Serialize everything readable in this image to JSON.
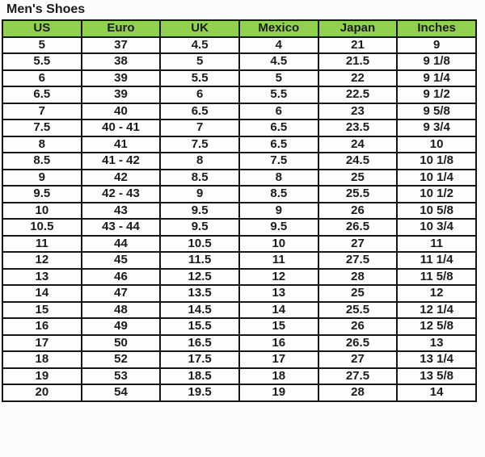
{
  "title": "Men's Shoes",
  "header_bg": "#92d050",
  "border_color": "#161616",
  "chart_data": {
    "type": "table",
    "title": "Men's Shoes",
    "columns": [
      "US",
      "Euro",
      "UK",
      "Mexico",
      "Japan",
      "Inches"
    ],
    "rows": [
      [
        "5",
        "37",
        "4.5",
        "4",
        "21",
        "9"
      ],
      [
        "5.5",
        "38",
        "5",
        "4.5",
        "21.5",
        "9 1/8"
      ],
      [
        "6",
        "39",
        "5.5",
        "5",
        "22",
        "9 1/4"
      ],
      [
        "6.5",
        "39",
        "6",
        "5.5",
        "22.5",
        "9 1/2"
      ],
      [
        "7",
        "40",
        "6.5",
        "6",
        "23",
        "9 5/8"
      ],
      [
        "7.5",
        "40 - 41",
        "7",
        "6.5",
        "23.5",
        "9 3/4"
      ],
      [
        "8",
        "41",
        "7.5",
        "6.5",
        "24",
        "10"
      ],
      [
        "8.5",
        "41 - 42",
        "8",
        "7.5",
        "24.5",
        "10 1/8"
      ],
      [
        "9",
        "42",
        "8.5",
        "8",
        "25",
        "10 1/4"
      ],
      [
        "9.5",
        "42 - 43",
        "9",
        "8.5",
        "25.5",
        "10 1/2"
      ],
      [
        "10",
        "43",
        "9.5",
        "9",
        "26",
        "10 5/8"
      ],
      [
        "10.5",
        "43 - 44",
        "9.5",
        "9.5",
        "26.5",
        "10 3/4"
      ],
      [
        "11",
        "44",
        "10.5",
        "10",
        "27",
        "11"
      ],
      [
        "12",
        "45",
        "11.5",
        "11",
        "27.5",
        "11 1/4"
      ],
      [
        "13",
        "46",
        "12.5",
        "12",
        "28",
        "11 5/8"
      ],
      [
        "14",
        "47",
        "13.5",
        "13",
        "25",
        "12"
      ],
      [
        "15",
        "48",
        "14.5",
        "14",
        "25.5",
        "12 1/4"
      ],
      [
        "16",
        "49",
        "15.5",
        "15",
        "26",
        "12 5/8"
      ],
      [
        "17",
        "50",
        "16.5",
        "16",
        "26.5",
        "13"
      ],
      [
        "18",
        "52",
        "17.5",
        "17",
        "27",
        "13 1/4"
      ],
      [
        "19",
        "53",
        "18.5",
        "18",
        "27.5",
        "13 5/8"
      ],
      [
        "20",
        "54",
        "19.5",
        "19",
        "28",
        "14"
      ]
    ]
  }
}
